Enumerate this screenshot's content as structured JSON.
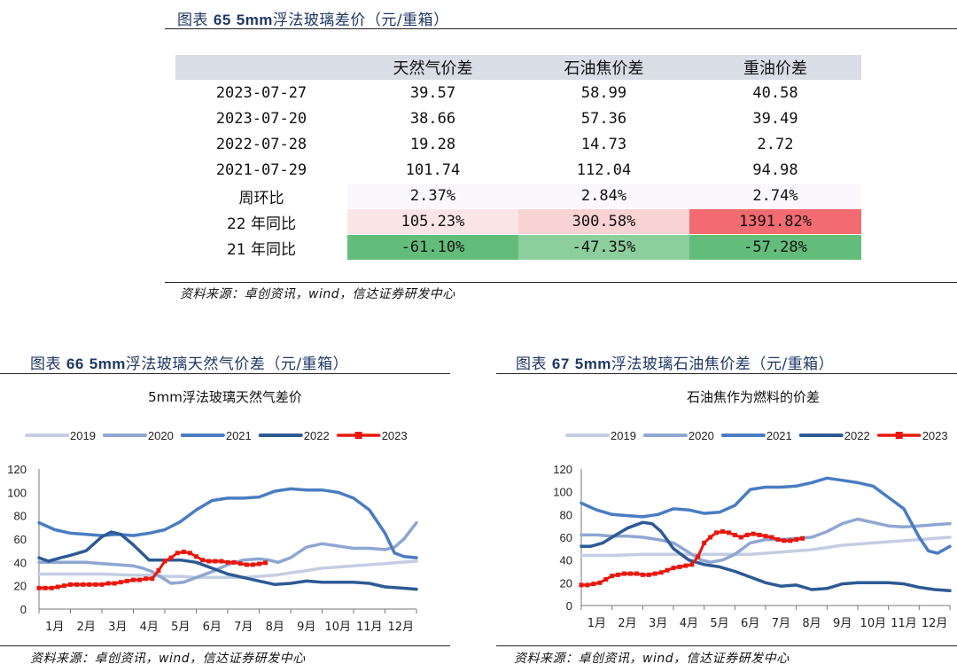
{
  "table_figure": {
    "title_prefix": "图表",
    "title_number": "65",
    "title_bold": "5mm",
    "title_rest": "浮法玻璃差价（元/重箱）",
    "columns": [
      "",
      "天然气价差",
      "石油焦价差",
      "重油价差"
    ],
    "rows": [
      {
        "label": "2023-07-27",
        "values": [
          "39.57",
          "58.99",
          "40.58"
        ]
      },
      {
        "label": "2023-07-20",
        "values": [
          "38.66",
          "57.36",
          "39.49"
        ]
      },
      {
        "label": "2022-07-28",
        "values": [
          "19.28",
          "14.73",
          "2.72"
        ]
      },
      {
        "label": "2021-07-29",
        "values": [
          "101.74",
          "112.04",
          "94.98"
        ]
      },
      {
        "label": "周环比",
        "values": [
          "2.37%",
          "2.84%",
          "2.74%"
        ]
      },
      {
        "label": "22 年同比",
        "values": [
          "105.23%",
          "300.58%",
          "1391.82%"
        ]
      },
      {
        "label": "21 年同比",
        "values": [
          "-61.10%",
          "-47.35%",
          "-57.28%"
        ]
      }
    ],
    "cell_colors": {
      "wow": [
        "#fbf8fd",
        "#fbf8fd",
        "#fbf8fd"
      ],
      "yoy22": [
        "#fbe4e6",
        "#f9d2d4",
        "#f16b71"
      ],
      "yoy21": [
        "#62bd7b",
        "#8ccf9c",
        "#62bd7b"
      ]
    },
    "source": "资料来源：卓创资讯，wind，信达证券研发中心"
  },
  "figure66": {
    "title_prefix": "图表",
    "title_number": "66",
    "title_bold": "5mm",
    "title_rest": "浮法玻璃天然气价差（元/重箱）",
    "source": "资料来源：卓创资讯，wind，信达证券研发中心"
  },
  "figure67": {
    "title_prefix": "图表",
    "title_number": "67",
    "title_bold": "5mm",
    "title_rest": "浮法玻璃石油焦价差（元/重箱）",
    "source": "资料来源：卓创资讯，wind，信达证券研发中心"
  },
  "chart_data": [
    {
      "type": "line",
      "title": "5mm浮法玻璃天然气差价",
      "xlabel": "",
      "ylabel": "",
      "ylim": [
        0,
        120
      ],
      "yticks": [
        0,
        20,
        40,
        60,
        80,
        100,
        120
      ],
      "categories": [
        "1月",
        "2月",
        "3月",
        "4月",
        "5月",
        "6月",
        "7月",
        "8月",
        "9月",
        "10月",
        "11月",
        "12月"
      ],
      "xlim": [
        0,
        12
      ],
      "grid": false,
      "legend": "top",
      "series": [
        {
          "name": "2019",
          "color": "#c4cde3",
          "width": 3.5,
          "marker": false,
          "x": [
            0,
            1,
            2,
            3,
            3.5,
            4,
            4.5,
            5,
            5.5,
            6,
            6.5,
            7,
            7.5,
            8,
            8.5,
            9,
            9.5,
            10,
            10.5,
            11,
            11.5,
            12
          ],
          "y": [
            30,
            30,
            30,
            29,
            29,
            28,
            28,
            27,
            27,
            27,
            27,
            28,
            29,
            31,
            33,
            35,
            36,
            37,
            38,
            39,
            40,
            41
          ]
        },
        {
          "name": "2020",
          "color": "#8ea6d2",
          "width": 3.5,
          "marker": false,
          "x": [
            0,
            0.5,
            1,
            1.5,
            2,
            2.5,
            3,
            3.3,
            3.6,
            3.9,
            4.2,
            4.6,
            5,
            5.5,
            6,
            6.5,
            7,
            7.3,
            7.6,
            8,
            8.5,
            9,
            9.5,
            10,
            10.5,
            11,
            11.3,
            11.6,
            12
          ],
          "y": [
            40,
            40,
            40,
            40,
            39,
            38,
            37,
            35,
            32,
            27,
            22,
            23,
            27,
            32,
            38,
            42,
            43,
            42,
            40,
            44,
            53,
            56,
            54,
            52,
            52,
            51,
            53,
            60,
            74
          ]
        },
        {
          "name": "2021",
          "color": "#4a7cc2",
          "width": 3.5,
          "marker": false,
          "x": [
            0,
            0.5,
            1,
            1.5,
            2,
            2.5,
            3,
            3.5,
            4,
            4.5,
            5,
            5.5,
            6,
            6.5,
            7,
            7.5,
            8,
            8.5,
            9,
            9.5,
            10,
            10.5,
            11,
            11.3,
            11.6,
            12
          ],
          "y": [
            74,
            68,
            65,
            64,
            63,
            64,
            63,
            65,
            68,
            75,
            85,
            93,
            95,
            95,
            96,
            101,
            103,
            102,
            102,
            100,
            95,
            85,
            65,
            48,
            45,
            44
          ]
        },
        {
          "name": "2022",
          "color": "#2d5a95",
          "width": 3.5,
          "marker": false,
          "x": [
            0,
            0.3,
            0.7,
            1,
            1.5,
            2,
            2.3,
            2.6,
            3,
            3.5,
            4,
            4.5,
            5,
            5.5,
            6,
            6.5,
            7,
            7.5,
            8,
            8.5,
            9,
            9.5,
            10,
            10.5,
            11,
            11.5,
            12
          ],
          "y": [
            44,
            41,
            44,
            46,
            50,
            62,
            66,
            64,
            55,
            42,
            42,
            42,
            40,
            35,
            30,
            27,
            24,
            21,
            22,
            24,
            23,
            23,
            23,
            22,
            19,
            18,
            17
          ]
        },
        {
          "name": "2023",
          "color": "#e8180f",
          "width": 3,
          "marker": true,
          "x": [
            0,
            0.2,
            0.4,
            0.6,
            0.8,
            1,
            1.2,
            1.4,
            1.6,
            1.8,
            2,
            2.2,
            2.4,
            2.6,
            2.8,
            3,
            3.2,
            3.4,
            3.6,
            3.8,
            4,
            4.2,
            4.4,
            4.6,
            4.8,
            5,
            5.2,
            5.4,
            5.6,
            5.8,
            6,
            6.2,
            6.4,
            6.6,
            6.8,
            7,
            7.2
          ],
          "y": [
            18,
            18,
            18,
            19,
            20,
            21,
            21,
            21,
            21,
            21,
            21,
            22,
            22,
            23,
            24,
            25,
            25,
            26,
            26,
            33,
            41,
            44,
            48,
            49,
            48,
            45,
            42,
            41,
            41,
            41,
            40,
            40,
            39,
            38,
            38,
            38.7,
            39.6
          ]
        }
      ]
    },
    {
      "type": "line",
      "title": "石油焦作为燃料的价差",
      "xlabel": "",
      "ylabel": "",
      "ylim": [
        0,
        120
      ],
      "yticks": [
        0,
        20,
        40,
        60,
        80,
        100,
        120
      ],
      "categories": [
        "1月",
        "2月",
        "3月",
        "4月",
        "5月",
        "6月",
        "7月",
        "8月",
        "9月",
        "10月",
        "11月",
        "12月"
      ],
      "xlim": [
        0,
        12
      ],
      "grid": false,
      "legend": "top",
      "series": [
        {
          "name": "2019",
          "color": "#c4cde3",
          "width": 3.5,
          "marker": false,
          "x": [
            0,
            1,
            2,
            3,
            3.5,
            4,
            4.5,
            5,
            5.5,
            6,
            6.5,
            7,
            7.5,
            8,
            8.5,
            9,
            9.5,
            10,
            10.5,
            11,
            11.5,
            12
          ],
          "y": [
            44,
            44,
            45,
            45,
            45,
            45,
            45,
            45,
            45,
            46,
            47,
            48,
            49,
            51,
            53,
            54,
            55,
            56,
            57,
            58,
            59,
            60
          ]
        },
        {
          "name": "2020",
          "color": "#8ea6d2",
          "width": 3.5,
          "marker": false,
          "x": [
            0,
            0.5,
            1,
            1.5,
            2,
            2.5,
            3,
            3.3,
            3.6,
            3.9,
            4.2,
            4.6,
            5,
            5.5,
            6,
            6.5,
            7,
            7.5,
            8,
            8.5,
            9,
            9.5,
            10,
            10.5,
            11,
            11.5,
            12
          ],
          "y": [
            62,
            62,
            61,
            61,
            60,
            58,
            55,
            50,
            45,
            40,
            38,
            40,
            45,
            55,
            58,
            58,
            59,
            60,
            65,
            72,
            76,
            73,
            70,
            69,
            70,
            71,
            72
          ]
        },
        {
          "name": "2021",
          "color": "#4a7cc2",
          "width": 3.5,
          "marker": false,
          "x": [
            0,
            0.5,
            1,
            1.5,
            2,
            2.5,
            3,
            3.5,
            4,
            4.5,
            5,
            5.5,
            6,
            6.5,
            7,
            7.5,
            8,
            8.5,
            9,
            9.5,
            10,
            10.5,
            11,
            11.3,
            11.6,
            12
          ],
          "y": [
            90,
            84,
            80,
            79,
            78,
            80,
            85,
            84,
            81,
            82,
            88,
            102,
            104,
            104,
            105,
            108,
            112,
            110,
            108,
            105,
            95,
            85,
            60,
            48,
            46,
            52
          ]
        },
        {
          "name": "2022",
          "color": "#2d5a95",
          "width": 3.5,
          "marker": false,
          "x": [
            0,
            0.3,
            0.7,
            1,
            1.5,
            2,
            2.3,
            2.6,
            3,
            3.5,
            4,
            4.5,
            5,
            5.5,
            6,
            6.5,
            7,
            7.5,
            8,
            8.5,
            9,
            9.5,
            10,
            10.5,
            11,
            11.5,
            12
          ],
          "y": [
            52,
            52,
            55,
            60,
            68,
            73,
            72,
            65,
            50,
            40,
            36,
            34,
            30,
            25,
            20,
            17,
            18,
            14,
            15,
            19,
            20,
            20,
            20,
            19,
            16,
            14,
            13
          ]
        },
        {
          "name": "2023",
          "color": "#e8180f",
          "width": 3,
          "marker": true,
          "x": [
            0,
            0.2,
            0.4,
            0.6,
            0.8,
            1,
            1.2,
            1.4,
            1.6,
            1.8,
            2,
            2.2,
            2.4,
            2.6,
            2.8,
            3,
            3.2,
            3.4,
            3.6,
            3.8,
            4,
            4.2,
            4.4,
            4.6,
            4.8,
            5,
            5.2,
            5.4,
            5.6,
            5.8,
            6,
            6.2,
            6.4,
            6.6,
            6.8,
            7,
            7.2
          ],
          "y": [
            18,
            18,
            19,
            20,
            23,
            26,
            27,
            28,
            28,
            28,
            27,
            27,
            28,
            29,
            31,
            33,
            34,
            35,
            36,
            43,
            55,
            60,
            64,
            65,
            64,
            62,
            60,
            62,
            63,
            62,
            61,
            60,
            58,
            57,
            57,
            58,
            59
          ]
        }
      ]
    }
  ]
}
